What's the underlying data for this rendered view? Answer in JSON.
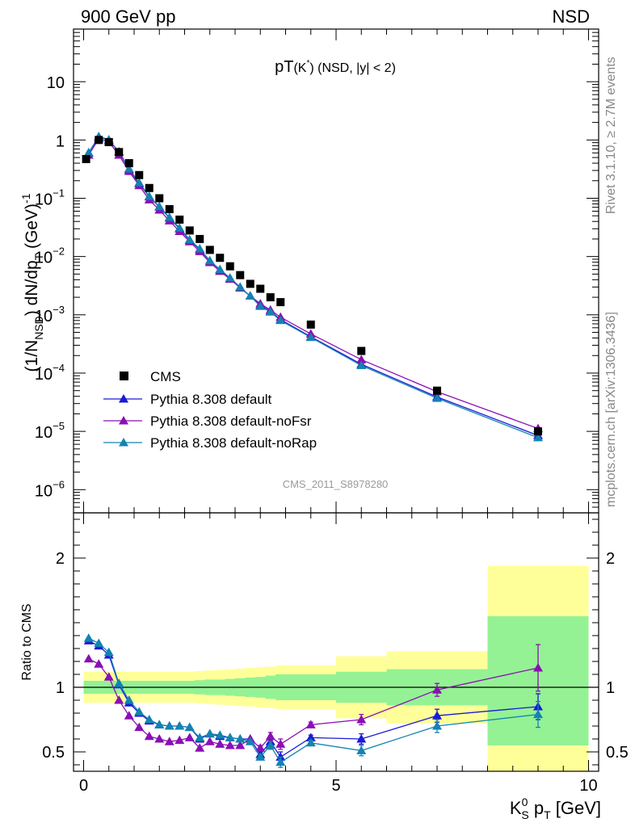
{
  "header": {
    "left": "900 GeV pp",
    "right": "NSD"
  },
  "side_labels": {
    "rivet": "Rivet 3.1.10, ≥ 2.7M events",
    "mcplots": "mcplots.cern.ch [arXiv:1306.3436]"
  },
  "colors": {
    "cms": "#000000",
    "default": "#1a1ad6",
    "noFsr": "#8a0fb4",
    "noRap": "#1383b0",
    "band_inner": "#94f294",
    "band_outer": "#ffff99"
  },
  "chart_data": [
    {
      "type": "scatter",
      "panel": "main",
      "title_main": "pT",
      "title_sub": "(K",
      "title_sup": "*",
      "title_close": ")",
      "title_rest": " (NSD, |y| < 2)",
      "watermark": "CMS_2011_S8978280",
      "ylabel": {
        "a": "(1/N",
        "a_sub": "NSD",
        "b": ") dN/dp",
        "b_sub": "T",
        "c": " (GeV)",
        "c_sup": "-1"
      },
      "y_scale": "log",
      "ylim": [
        4e-07,
        80
      ],
      "xlim": [
        -0.2,
        10.2
      ],
      "ytick_labels": [
        {
          "v": 10,
          "m": "10",
          "e": ""
        },
        {
          "v": 1,
          "m": "1",
          "e": ""
        },
        {
          "v": 0.1,
          "m": "10",
          "e": "−1"
        },
        {
          "v": 0.01,
          "m": "10",
          "e": "−2"
        },
        {
          "v": 0.001,
          "m": "10",
          "e": "−3"
        },
        {
          "v": 0.0001,
          "m": "10",
          "e": "−4"
        },
        {
          "v": 1e-05,
          "m": "10",
          "e": "−5"
        },
        {
          "v": 1e-06,
          "m": "10",
          "e": "−6"
        }
      ],
      "legend_position": "lower-left",
      "series": [
        {
          "name": "CMS",
          "marker": "square",
          "x": [
            0.05,
            0.3,
            0.5,
            0.7,
            0.9,
            1.1,
            1.3,
            1.5,
            1.7,
            1.9,
            2.1,
            2.3,
            2.5,
            2.7,
            2.9,
            3.1,
            3.3,
            3.5,
            3.7,
            3.9,
            4.5,
            5.5,
            7.0,
            9.0
          ],
          "y": [
            0.47,
            1.0,
            0.92,
            0.62,
            0.4,
            0.25,
            0.15,
            0.1,
            0.065,
            0.043,
            0.028,
            0.02,
            0.013,
            0.0095,
            0.0068,
            0.0048,
            0.0034,
            0.0028,
            0.002,
            0.00165,
            0.00068,
            0.00024,
            5e-05,
            1e-05
          ]
        },
        {
          "name": "Pythia 8.308 default",
          "marker": "triangle",
          "x": [
            0.1,
            0.3,
            0.5,
            0.7,
            0.9,
            1.1,
            1.3,
            1.5,
            1.7,
            1.9,
            2.1,
            2.3,
            2.5,
            2.7,
            2.9,
            3.1,
            3.3,
            3.5,
            3.7,
            3.9,
            4.5,
            5.5,
            7.0,
            9.0
          ],
          "y": [
            0.6,
            1.12,
            1.0,
            0.62,
            0.31,
            0.18,
            0.106,
            0.071,
            0.046,
            0.03,
            0.019,
            0.0132,
            0.0084,
            0.0059,
            0.0042,
            0.0029,
            0.0021,
            0.00145,
            0.00115,
            0.00083,
            0.00042,
            0.000142,
            3.9e-05,
            8.5e-06
          ]
        },
        {
          "name": "Pythia 8.308 default-noFsr",
          "marker": "triangle",
          "x": [
            0.1,
            0.3,
            0.5,
            0.7,
            0.9,
            1.1,
            1.3,
            1.5,
            1.7,
            1.9,
            2.1,
            2.3,
            2.5,
            2.7,
            2.9,
            3.1,
            3.3,
            3.5,
            3.7,
            3.9,
            4.5,
            5.5,
            7.0,
            9.0
          ],
          "y": [
            0.55,
            1.05,
            0.93,
            0.55,
            0.29,
            0.165,
            0.094,
            0.063,
            0.041,
            0.027,
            0.018,
            0.0122,
            0.0079,
            0.0056,
            0.0041,
            0.0029,
            0.0021,
            0.00155,
            0.00121,
            0.00091,
            0.00047,
            0.00017,
            4.8e-05,
            1.12e-05
          ]
        },
        {
          "name": "Pythia 8.308 default-noRap",
          "marker": "triangle",
          "x": [
            0.1,
            0.3,
            0.5,
            0.7,
            0.9,
            1.1,
            1.3,
            1.5,
            1.7,
            1.9,
            2.1,
            2.3,
            2.5,
            2.7,
            2.9,
            3.1,
            3.3,
            3.5,
            3.7,
            3.9,
            4.5,
            5.5,
            7.0,
            9.0
          ],
          "y": [
            0.61,
            1.15,
            1.01,
            0.63,
            0.32,
            0.185,
            0.108,
            0.072,
            0.047,
            0.031,
            0.0195,
            0.0136,
            0.0085,
            0.006,
            0.0043,
            0.003,
            0.0021,
            0.0014,
            0.00112,
            0.0008,
            0.00041,
            0.000135,
            3.7e-05,
            7.8e-06
          ]
        }
      ]
    },
    {
      "type": "line",
      "panel": "ratio",
      "ylabel": "Ratio to CMS",
      "xlabel": {
        "k": "K",
        "k_sup": "0",
        "k_sub": "S",
        "rest": " p",
        "rest_sub": "T",
        "unit": " [GeV]"
      },
      "ylim": [
        0.35,
        2.35
      ],
      "xlim": [
        -0.2,
        10.2
      ],
      "xticks": [
        0,
        5,
        10
      ],
      "yticks_labeled": [
        0.5,
        1,
        2
      ],
      "reference_line": 1,
      "bands": [
        {
          "x0": 0.0,
          "x1": 0.2,
          "inner": [
            0.95,
            1.05
          ],
          "outer": [
            0.88,
            1.12
          ]
        },
        {
          "x0": 0.2,
          "x1": 0.4,
          "inner": [
            0.95,
            1.05
          ],
          "outer": [
            0.88,
            1.12
          ]
        },
        {
          "x0": 0.4,
          "x1": 0.6,
          "inner": [
            0.95,
            1.05
          ],
          "outer": [
            0.88,
            1.12
          ]
        },
        {
          "x0": 0.6,
          "x1": 0.8,
          "inner": [
            0.95,
            1.05
          ],
          "outer": [
            0.88,
            1.12
          ]
        },
        {
          "x0": 0.8,
          "x1": 1.0,
          "inner": [
            0.95,
            1.05
          ],
          "outer": [
            0.88,
            1.12
          ]
        },
        {
          "x0": 1.0,
          "x1": 1.2,
          "inner": [
            0.95,
            1.05
          ],
          "outer": [
            0.88,
            1.12
          ]
        },
        {
          "x0": 1.2,
          "x1": 1.4,
          "inner": [
            0.95,
            1.05
          ],
          "outer": [
            0.88,
            1.12
          ]
        },
        {
          "x0": 1.4,
          "x1": 1.6,
          "inner": [
            0.95,
            1.05
          ],
          "outer": [
            0.88,
            1.12
          ]
        },
        {
          "x0": 1.6,
          "x1": 1.8,
          "inner": [
            0.95,
            1.05
          ],
          "outer": [
            0.88,
            1.12
          ]
        },
        {
          "x0": 1.8,
          "x1": 2.0,
          "inner": [
            0.95,
            1.05
          ],
          "outer": [
            0.88,
            1.12
          ]
        },
        {
          "x0": 2.0,
          "x1": 2.2,
          "inner": [
            0.95,
            1.05
          ],
          "outer": [
            0.88,
            1.12
          ]
        },
        {
          "x0": 2.2,
          "x1": 2.4,
          "inner": [
            0.945,
            1.055
          ],
          "outer": [
            0.875,
            1.125
          ]
        },
        {
          "x0": 2.4,
          "x1": 2.6,
          "inner": [
            0.94,
            1.06
          ],
          "outer": [
            0.87,
            1.13
          ]
        },
        {
          "x0": 2.6,
          "x1": 2.8,
          "inner": [
            0.94,
            1.06
          ],
          "outer": [
            0.865,
            1.135
          ]
        },
        {
          "x0": 2.8,
          "x1": 3.0,
          "inner": [
            0.935,
            1.065
          ],
          "outer": [
            0.86,
            1.14
          ]
        },
        {
          "x0": 3.0,
          "x1": 3.2,
          "inner": [
            0.93,
            1.07
          ],
          "outer": [
            0.855,
            1.145
          ]
        },
        {
          "x0": 3.2,
          "x1": 3.4,
          "inner": [
            0.925,
            1.075
          ],
          "outer": [
            0.85,
            1.15
          ]
        },
        {
          "x0": 3.4,
          "x1": 3.6,
          "inner": [
            0.92,
            1.08
          ],
          "outer": [
            0.845,
            1.155
          ]
        },
        {
          "x0": 3.6,
          "x1": 3.8,
          "inner": [
            0.91,
            1.09
          ],
          "outer": [
            0.84,
            1.16
          ]
        },
        {
          "x0": 3.8,
          "x1": 4.0,
          "inner": [
            0.9,
            1.1
          ],
          "outer": [
            0.83,
            1.17
          ]
        },
        {
          "x0": 4.0,
          "x1": 5.0,
          "inner": [
            0.9,
            1.1
          ],
          "outer": [
            0.83,
            1.17
          ]
        },
        {
          "x0": 5.0,
          "x1": 6.0,
          "inner": [
            0.88,
            1.12
          ],
          "outer": [
            0.76,
            1.24
          ]
        },
        {
          "x0": 6.0,
          "x1": 8.0,
          "inner": [
            0.86,
            1.14
          ],
          "outer": [
            0.72,
            1.28
          ]
        },
        {
          "x0": 8.0,
          "x1": 10.0,
          "inner": [
            0.55,
            1.55
          ],
          "outer": [
            0.35,
            1.94
          ]
        }
      ],
      "series": [
        {
          "name": "Pythia 8.308 default",
          "x": [
            0.1,
            0.3,
            0.5,
            0.7,
            0.9,
            1.1,
            1.3,
            1.5,
            1.7,
            1.9,
            2.1,
            2.3,
            2.5,
            2.7,
            2.9,
            3.1,
            3.3,
            3.5,
            3.7,
            3.9,
            4.5,
            5.5,
            7.0,
            9.0
          ],
          "y": [
            1.36,
            1.32,
            1.25,
            1.02,
            0.88,
            0.8,
            0.74,
            0.71,
            0.7,
            0.7,
            0.69,
            0.6,
            0.64,
            0.62,
            0.61,
            0.6,
            0.6,
            0.48,
            0.58,
            0.46,
            0.61,
            0.6,
            0.78,
            0.85
          ],
          "err": [
            0,
            0,
            0,
            0,
            0,
            0,
            0,
            0,
            0,
            0,
            0,
            0,
            0,
            0,
            0,
            0,
            0,
            0.02,
            0.03,
            0.04,
            0.02,
            0.04,
            0.05,
            0.1
          ]
        },
        {
          "name": "Pythia 8.308 default-noFsr",
          "x": [
            0.1,
            0.3,
            0.5,
            0.7,
            0.9,
            1.1,
            1.3,
            1.5,
            1.7,
            1.9,
            2.1,
            2.3,
            2.5,
            2.7,
            2.9,
            3.1,
            3.3,
            3.5,
            3.7,
            3.9,
            4.5,
            5.5,
            7.0,
            9.0
          ],
          "y": [
            1.22,
            1.18,
            1.08,
            0.9,
            0.78,
            0.69,
            0.62,
            0.6,
            0.58,
            0.59,
            0.61,
            0.53,
            0.58,
            0.56,
            0.55,
            0.55,
            0.6,
            0.53,
            0.62,
            0.56,
            0.71,
            0.75,
            0.98,
            1.15
          ],
          "err": [
            0,
            0,
            0,
            0,
            0,
            0,
            0,
            0,
            0,
            0,
            0,
            0,
            0,
            0,
            0,
            0,
            0,
            0.02,
            0.03,
            0.04,
            0.02,
            0.04,
            0.05,
            0.18
          ]
        },
        {
          "name": "Pythia 8.308 default-noRap",
          "x": [
            0.1,
            0.3,
            0.5,
            0.7,
            0.9,
            1.1,
            1.3,
            1.5,
            1.7,
            1.9,
            2.1,
            2.3,
            2.5,
            2.7,
            2.9,
            3.1,
            3.3,
            3.5,
            3.7,
            3.9,
            4.5,
            5.5,
            7.0,
            9.0
          ],
          "y": [
            1.38,
            1.34,
            1.27,
            1.03,
            0.9,
            0.81,
            0.75,
            0.71,
            0.7,
            0.7,
            0.69,
            0.61,
            0.64,
            0.63,
            0.61,
            0.6,
            0.58,
            0.46,
            0.55,
            0.42,
            0.57,
            0.51,
            0.7,
            0.79
          ],
          "err": [
            0,
            0,
            0,
            0,
            0,
            0,
            0,
            0,
            0,
            0,
            0,
            0,
            0,
            0,
            0,
            0,
            0,
            0.02,
            0.03,
            0.04,
            0.02,
            0.04,
            0.05,
            0.1
          ]
        }
      ]
    }
  ]
}
